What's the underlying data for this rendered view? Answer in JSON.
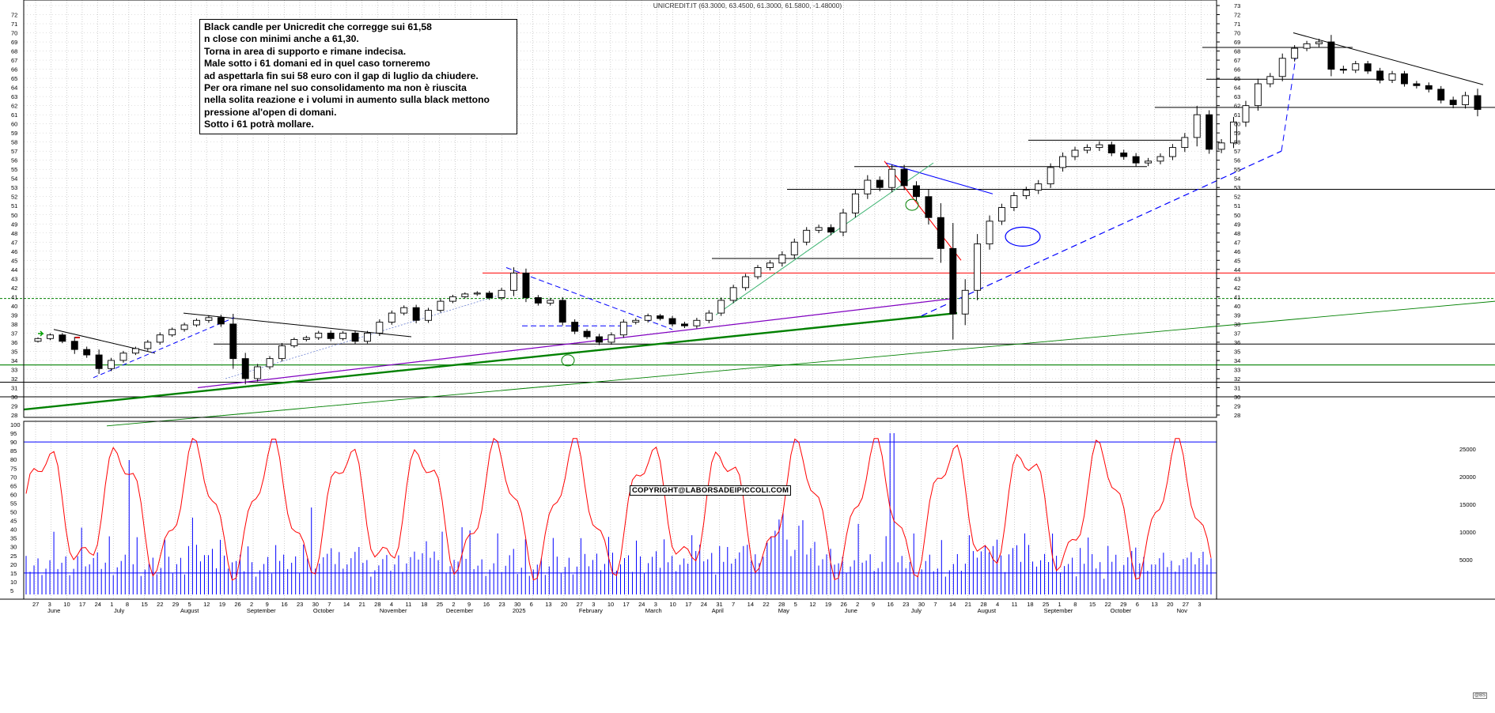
{
  "header": {
    "title": "UNICREDIT.IT (63.3000, 63.4500, 61.3000, 61.5800, -1.48000)"
  },
  "note": {
    "lines": [
      "Black candle per Unicredit che corregge sui 61,58",
      "n close con minimi anche a 61,30.",
      "Torna in area di supporto e rimane indecisa.",
      "Male sotto i 61 domani ed in quel caso torneremo",
      "ad aspettarla fin sui 58 euro con il gap di luglio da chiudere.",
      "Per ora rimane nel suo consolidamento ma non è riuscita",
      "nella solita reazione e i volumi in aumento sulla black mettono",
      "pressione al'open di domani.",
      "Sotto i 61 potrà mollare."
    ]
  },
  "copyright": "COPYRIGHT@LABORSADEIPICCOLI.COM",
  "stamp": "@BS",
  "colors": {
    "up_candle": "#ffffff",
    "down_candle": "#000000",
    "oscillator": "#ff0000",
    "volume": "#0000ff",
    "support_green": "#008000",
    "trend_blue": "#0000ff",
    "resistance_red": "#ff0000",
    "grid": "#b0b0b0"
  },
  "chart_data": [
    {
      "type": "candlestick",
      "ylim": [
        28,
        73
      ],
      "right_axis_ticks": [
        "73",
        "72",
        "71",
        "70",
        "69",
        "68",
        "67",
        "66",
        "65",
        "64",
        "63",
        "62",
        "61",
        "60",
        "59",
        "58",
        "57",
        "56",
        "55",
        "54",
        "53",
        "52",
        "51",
        "50",
        "49",
        "48",
        "47",
        "46",
        "45",
        "44",
        "43",
        "42",
        "41",
        "40",
        "39",
        "38",
        "37",
        "36",
        "35",
        "34",
        "33",
        "32",
        "31",
        "30",
        "29",
        "28"
      ],
      "left_axis_ticks": [
        "72",
        "71",
        "70",
        "69",
        "68",
        "67",
        "66",
        "65",
        "64",
        "63",
        "62",
        "61",
        "60",
        "59",
        "58",
        "57",
        "56",
        "55",
        "54",
        "53",
        "52",
        "51",
        "50",
        "49",
        "48",
        "47",
        "46",
        "45",
        "44",
        "43",
        "42",
        "41",
        "40",
        "39",
        "38",
        "37",
        "36",
        "35",
        "34",
        "33",
        "32",
        "31",
        "30",
        "29",
        "28"
      ],
      "closes": [
        36.4,
        36.8,
        36.1,
        35.2,
        34.6,
        33.1,
        34.0,
        34.8,
        35.3,
        36.0,
        36.8,
        37.4,
        37.9,
        38.4,
        38.7,
        38.0,
        34.2,
        32.0,
        33.3,
        34.2,
        35.6,
        36.3,
        36.5,
        37.0,
        36.4,
        37.0,
        36.1,
        37.0,
        38.2,
        39.2,
        39.8,
        38.4,
        39.5,
        40.5,
        41.0,
        41.3,
        41.4,
        40.9,
        41.7,
        43.6,
        40.9,
        40.3,
        40.6,
        38.2,
        37.2,
        36.6,
        36.0,
        36.8,
        38.2,
        38.4,
        38.9,
        38.6,
        38.0,
        37.8,
        38.4,
        39.2,
        40.6,
        42.0,
        43.2,
        44.2,
        44.7,
        45.6,
        47.0,
        48.3,
        48.6,
        48.1,
        50.2,
        52.3,
        53.8,
        53.0,
        55.0,
        53.2,
        52.0,
        49.7,
        46.3,
        39.1,
        41.7,
        46.8,
        49.3,
        50.8,
        52.1,
        52.7,
        53.4,
        55.2,
        56.4,
        57.1,
        57.4,
        57.7,
        56.8,
        56.4,
        55.7,
        55.9,
        56.4,
        57.4,
        58.5,
        61.0,
        57.2,
        57.9,
        60.2,
        62.0,
        64.4,
        65.2,
        67.2,
        68.3,
        68.8,
        69.0,
        66.0,
        65.9,
        66.6,
        65.8,
        64.8,
        65.5,
        64.4,
        64.2,
        63.8,
        62.6,
        62.1,
        63.1,
        61.58
      ],
      "ranges": [
        0.4,
        0.5,
        0.6,
        1.4,
        0.9,
        1.7,
        0.8,
        0.7,
        0.6,
        0.7,
        0.8,
        0.6,
        0.7,
        0.6,
        0.8,
        0.9,
        3.2,
        1.8,
        0.9,
        0.8,
        0.9,
        0.6,
        0.6,
        0.7,
        0.8,
        0.6,
        0.8,
        0.7,
        0.9,
        0.8,
        0.7,
        0.9,
        0.8,
        0.7,
        0.6,
        0.5,
        0.6,
        0.7,
        0.8,
        1.8,
        1.4,
        0.8,
        0.8,
        1.0,
        0.9,
        0.7,
        0.9,
        0.8,
        0.9,
        0.7,
        0.7,
        0.6,
        0.8,
        0.7,
        0.8,
        0.9,
        0.9,
        0.9,
        0.9,
        0.8,
        0.9,
        1.1,
        1.1,
        1.0,
        0.9,
        1.0,
        1.3,
        1.4,
        1.6,
        1.2,
        1.5,
        1.4,
        1.4,
        2.2,
        4.5,
        8.0,
        3.5,
        3.1,
        1.8,
        1.2,
        1.1,
        1.1,
        1.2,
        1.3,
        1.3,
        1.1,
        1.0,
        1.1,
        1.0,
        1.0,
        1.1,
        1.0,
        1.0,
        1.1,
        1.4,
        2.8,
        1.4,
        1.2,
        1.6,
        1.5,
        1.6,
        1.1,
        1.5,
        1.0,
        0.9,
        1.0,
        2.2,
        1.1,
        0.9,
        0.9,
        1.0,
        0.9,
        0.9,
        0.9,
        1.0,
        1.0,
        1.1,
        1.2,
        2.15
      ]
    },
    {
      "type": "line+bar",
      "oscillator_ticks": [
        "100",
        "95",
        "90",
        "85",
        "80",
        "75",
        "70",
        "65",
        "60",
        "55",
        "50",
        "45",
        "40",
        "35",
        "30",
        "25",
        "20",
        "15",
        "10",
        "5"
      ],
      "volume_ticks": [
        "25000",
        "20000",
        "15000",
        "10000",
        "5000"
      ],
      "oscillator_levels": [
        90,
        15
      ],
      "volume_note": "blue bars = daily volume, red line = oscillator"
    }
  ],
  "x_axis": {
    "day_ticks": [
      "27",
      "3",
      "10",
      "17",
      "24",
      "1",
      "8",
      "15",
      "22",
      "29",
      "5",
      "12",
      "19",
      "26",
      "2",
      "9",
      "16",
      "23",
      "30",
      "7",
      "14",
      "21",
      "28",
      "4",
      "11",
      "18",
      "25",
      "2",
      "9",
      "16",
      "23",
      "30",
      "6",
      "13",
      "20",
      "27",
      "3",
      "10",
      "17",
      "24",
      "3",
      "10",
      "17",
      "24",
      "31",
      "7",
      "14",
      "22",
      "28",
      "5",
      "12",
      "19",
      "26",
      "2",
      "9",
      "16",
      "23",
      "30",
      "7",
      "14",
      "21",
      "28",
      "4",
      "11",
      "18",
      "25",
      "1",
      "8",
      "15",
      "22",
      "29",
      "6",
      "13",
      "20",
      "27",
      "3"
    ],
    "month_labels": [
      "June",
      "July",
      "August",
      "September",
      "October",
      "November",
      "December",
      "2025",
      "February",
      "March",
      "April",
      "May",
      "June",
      "July",
      "August",
      "September",
      "October",
      "Nov"
    ]
  }
}
